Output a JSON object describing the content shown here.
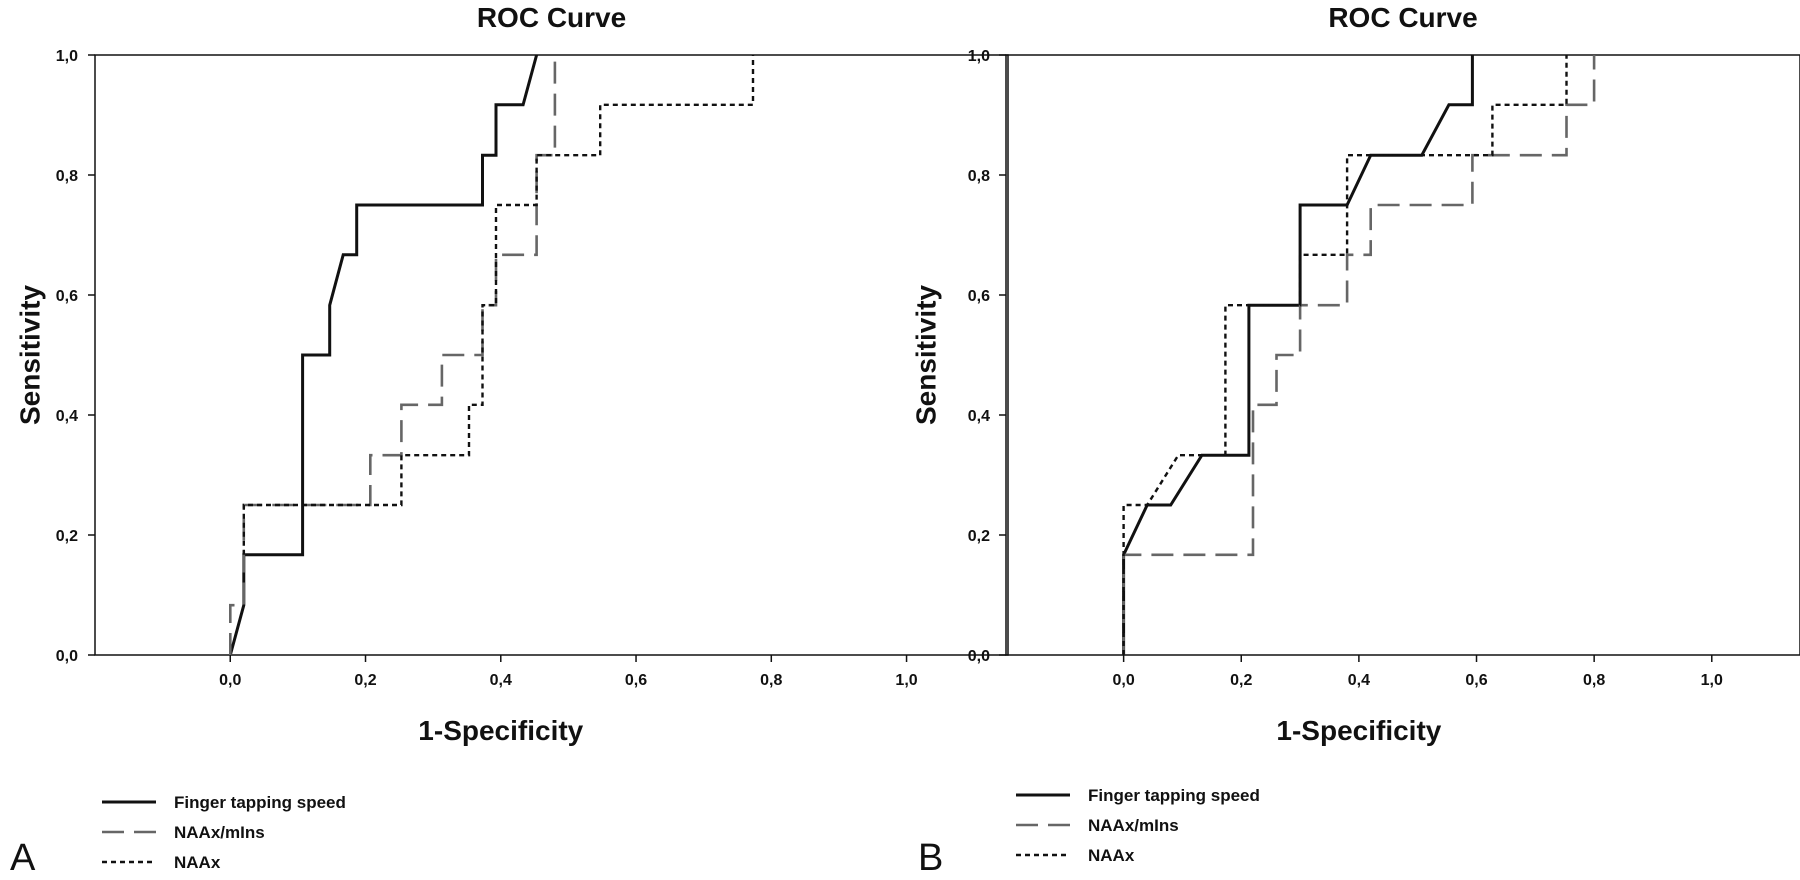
{
  "chart_data": [
    {
      "type": "line",
      "panel_label": "A",
      "title": "ROC Curve",
      "xlabel": "1-Specificity",
      "ylabel": "Sensitivity",
      "xlim": [
        -0.2,
        1.15
      ],
      "ylim": [
        0,
        1
      ],
      "x_ticks": [
        "0,0",
        "0,2",
        "0,4",
        "0,6",
        "0,8",
        "1,0"
      ],
      "y_ticks": [
        "0,0",
        "0,2",
        "0,4",
        "0,6",
        "0,8",
        "1,0"
      ],
      "grid": false,
      "legend_position": "bottom-left",
      "series": [
        {
          "name": "Finger tapping speed",
          "style": "solid",
          "color": "#111111",
          "points": [
            [
              0.0,
              0.0
            ],
            [
              0.02,
              0.083
            ],
            [
              0.02,
              0.167
            ],
            [
              0.107,
              0.167
            ],
            [
              0.107,
              0.5
            ],
            [
              0.147,
              0.5
            ],
            [
              0.147,
              0.583
            ],
            [
              0.167,
              0.667
            ],
            [
              0.187,
              0.667
            ],
            [
              0.187,
              0.75
            ],
            [
              0.373,
              0.75
            ],
            [
              0.373,
              0.833
            ],
            [
              0.393,
              0.833
            ],
            [
              0.393,
              0.917
            ],
            [
              0.433,
              0.917
            ],
            [
              0.453,
              1.0
            ]
          ]
        },
        {
          "name": "NAAx/mIns",
          "style": "dashed",
          "color": "#666666",
          "points": [
            [
              0.0,
              0.0
            ],
            [
              0.0,
              0.083
            ],
            [
              0.02,
              0.083
            ],
            [
              0.02,
              0.25
            ],
            [
              0.207,
              0.25
            ],
            [
              0.207,
              0.333
            ],
            [
              0.253,
              0.333
            ],
            [
              0.253,
              0.417
            ],
            [
              0.313,
              0.417
            ],
            [
              0.313,
              0.5
            ],
            [
              0.373,
              0.5
            ],
            [
              0.373,
              0.583
            ],
            [
              0.393,
              0.583
            ],
            [
              0.393,
              0.667
            ],
            [
              0.453,
              0.667
            ],
            [
              0.453,
              0.833
            ],
            [
              0.48,
              0.833
            ],
            [
              0.48,
              1.0
            ]
          ]
        },
        {
          "name": "NAAx",
          "style": "dotted",
          "color": "#111111",
          "points": [
            [
              0.02,
              0.167
            ],
            [
              0.02,
              0.25
            ],
            [
              0.253,
              0.25
            ],
            [
              0.253,
              0.333
            ],
            [
              0.353,
              0.333
            ],
            [
              0.353,
              0.417
            ],
            [
              0.373,
              0.417
            ],
            [
              0.373,
              0.583
            ],
            [
              0.393,
              0.583
            ],
            [
              0.393,
              0.75
            ],
            [
              0.453,
              0.75
            ],
            [
              0.453,
              0.833
            ],
            [
              0.547,
              0.833
            ],
            [
              0.547,
              0.917
            ],
            [
              0.773,
              0.917
            ],
            [
              0.773,
              1.0
            ]
          ]
        }
      ]
    },
    {
      "type": "line",
      "panel_label": "B",
      "title": "ROC Curve",
      "xlabel": "1-Specificity",
      "ylabel": "Sensitivity",
      "xlim": [
        -0.2,
        1.15
      ],
      "ylim": [
        0,
        1
      ],
      "x_ticks": [
        "0,0",
        "0,2",
        "0,4",
        "0,6",
        "0,8",
        "1,0"
      ],
      "y_ticks": [
        "0,0",
        "0,2",
        "0,4",
        "0,6",
        "0,8",
        "1,0"
      ],
      "grid": false,
      "legend_position": "bottom-left",
      "series": [
        {
          "name": "Finger tapping speed",
          "style": "solid",
          "color": "#111111",
          "points": [
            [
              0.0,
              0.0
            ],
            [
              0.0,
              0.167
            ],
            [
              0.04,
              0.25
            ],
            [
              0.08,
              0.25
            ],
            [
              0.133,
              0.333
            ],
            [
              0.213,
              0.333
            ],
            [
              0.213,
              0.583
            ],
            [
              0.3,
              0.583
            ],
            [
              0.3,
              0.75
            ],
            [
              0.38,
              0.75
            ],
            [
              0.42,
              0.833
            ],
            [
              0.507,
              0.833
            ],
            [
              0.553,
              0.917
            ],
            [
              0.593,
              0.917
            ],
            [
              0.593,
              1.0
            ]
          ]
        },
        {
          "name": "NAAx/mIns",
          "style": "dashed",
          "color": "#666666",
          "points": [
            [
              0.0,
              0.0
            ],
            [
              0.0,
              0.167
            ],
            [
              0.22,
              0.167
            ],
            [
              0.22,
              0.417
            ],
            [
              0.26,
              0.417
            ],
            [
              0.26,
              0.5
            ],
            [
              0.3,
              0.5
            ],
            [
              0.3,
              0.583
            ],
            [
              0.38,
              0.583
            ],
            [
              0.38,
              0.667
            ],
            [
              0.42,
              0.667
            ],
            [
              0.42,
              0.75
            ],
            [
              0.593,
              0.75
            ],
            [
              0.593,
              0.833
            ],
            [
              0.753,
              0.833
            ],
            [
              0.753,
              0.917
            ],
            [
              0.8,
              0.917
            ],
            [
              0.8,
              1.0
            ]
          ]
        },
        {
          "name": "NAAx",
          "style": "dotted",
          "color": "#111111",
          "points": [
            [
              0.0,
              0.0
            ],
            [
              0.0,
              0.25
            ],
            [
              0.04,
              0.25
            ],
            [
              0.093,
              0.333
            ],
            [
              0.133,
              0.333
            ],
            [
              0.173,
              0.333
            ],
            [
              0.173,
              0.583
            ],
            [
              0.22,
              0.583
            ],
            [
              0.3,
              0.583
            ],
            [
              0.3,
              0.667
            ],
            [
              0.38,
              0.667
            ],
            [
              0.38,
              0.833
            ],
            [
              0.627,
              0.833
            ],
            [
              0.627,
              0.917
            ],
            [
              0.753,
              0.917
            ],
            [
              0.753,
              1.0
            ]
          ]
        }
      ]
    }
  ]
}
